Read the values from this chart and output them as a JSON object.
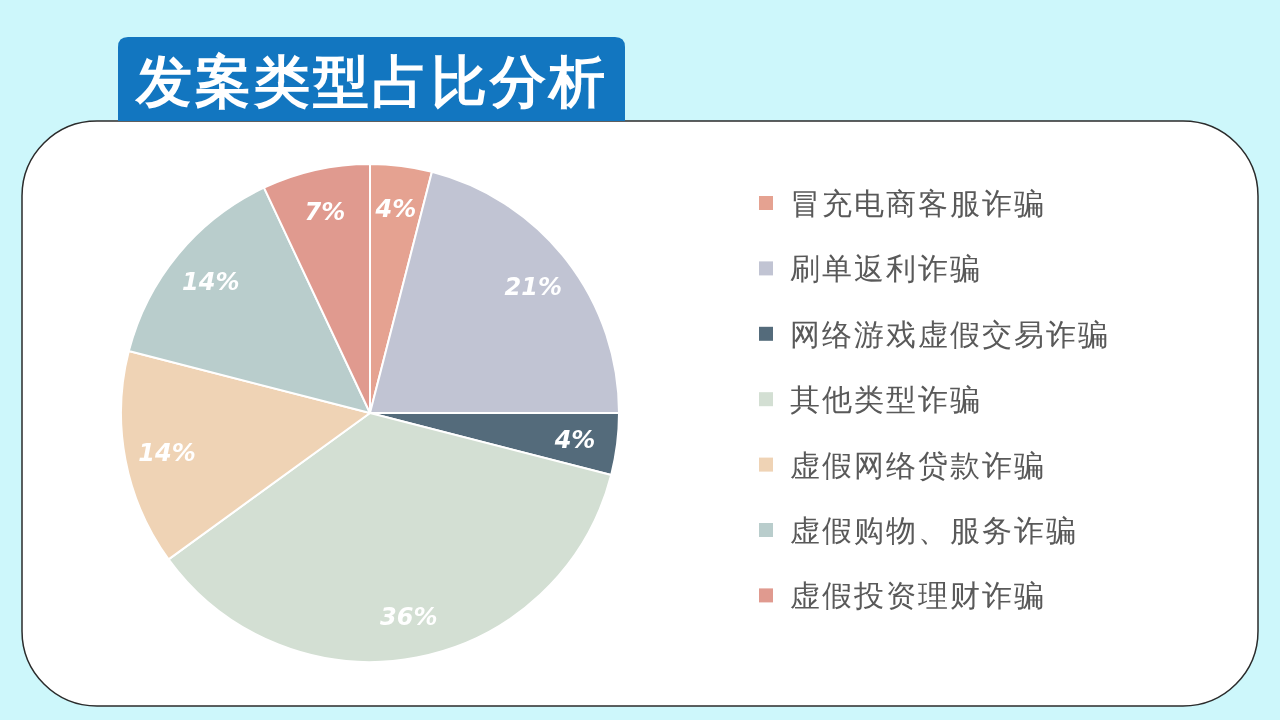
{
  "chart_data": {
    "type": "pie",
    "title": "发案类型占比分析",
    "categories": [
      "冒充电商客服诈骗",
      "刷单返利诈骗",
      "网络游戏虚假交易诈骗",
      "其他类型诈骗",
      "虚假网络贷款诈骗",
      "虚假购物、服务诈骗",
      "虚假投资理财诈骗"
    ],
    "values": [
      4,
      21,
      4,
      36,
      14,
      14,
      7
    ],
    "colors": [
      "#e5a291",
      "#c1c4d3",
      "#546b7b",
      "#d3dfd3",
      "#efd3b5",
      "#b9cdcc",
      "#e09a8f"
    ],
    "value_labels": [
      "4%",
      "21%",
      "4%",
      "36%",
      "14%",
      "14%",
      "7%"
    ],
    "legend": "right"
  }
}
